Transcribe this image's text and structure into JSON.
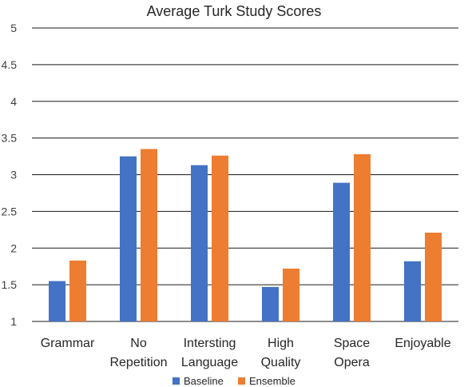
{
  "chart_data": {
    "type": "bar",
    "title": "Average Turk Study Scores",
    "categories": [
      [
        "Grammar"
      ],
      [
        "No",
        "Repetition"
      ],
      [
        "Intersting",
        "Language"
      ],
      [
        "High",
        "Quality"
      ],
      [
        "Space",
        "Opera"
      ],
      [
        "Enjoyable"
      ]
    ],
    "series": [
      {
        "name": "Baseline",
        "color": "#4472c4",
        "values": [
          1.55,
          3.25,
          3.13,
          1.47,
          2.89,
          1.82
        ]
      },
      {
        "name": "Ensemble",
        "color": "#ed7d31",
        "values": [
          1.83,
          3.35,
          3.26,
          1.72,
          3.28,
          2.21
        ]
      }
    ],
    "ylim": [
      1,
      5
    ],
    "yticks": [
      "1",
      "1.5",
      "2",
      "2.5",
      "3",
      "3.5",
      "4",
      "4.5",
      "5"
    ],
    "grid": true,
    "legend": "bottom",
    "xlabel": "",
    "ylabel": ""
  }
}
